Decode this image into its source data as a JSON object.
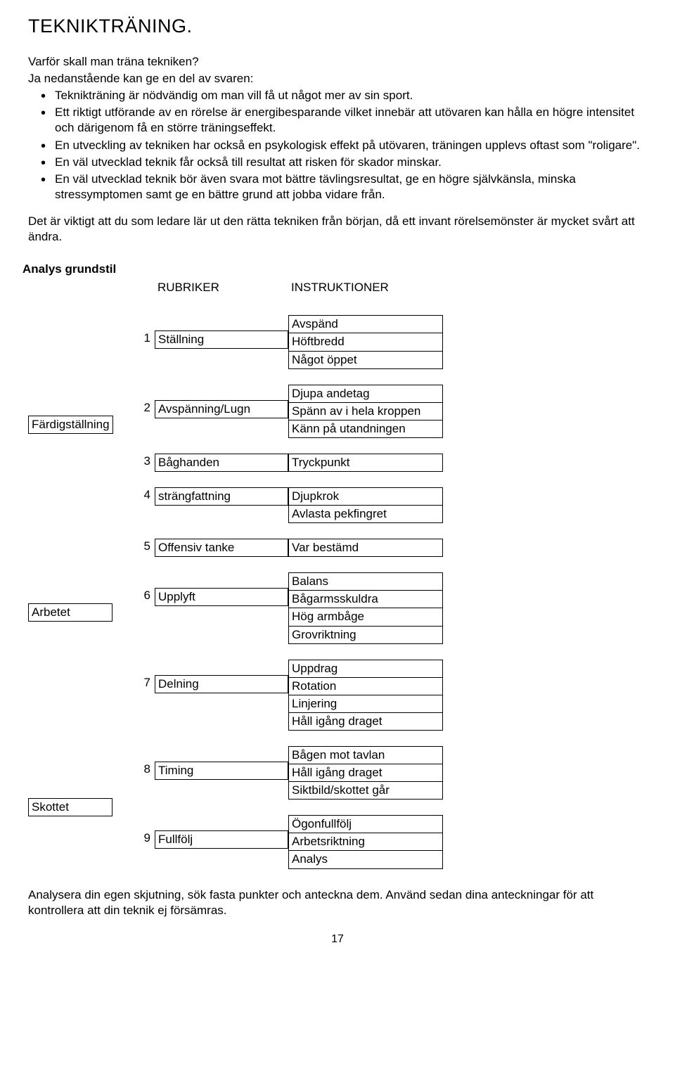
{
  "title": "TEKNIKTRÄNING.",
  "intro_q": "Varför skall man träna tekniken?",
  "intro_a": "Ja nedanstående kan ge en del av svaren:",
  "bullets": [
    "Teknikträning är nödvändig om man vill få ut något mer av sin sport.",
    "Ett riktigt utförande av en rörelse är energibesparande vilket innebär att utövaren kan hålla en högre intensitet och därigenom få en större träningseffekt.",
    "En utveckling av tekniken har också en psykologisk effekt på utövaren, träningen upplevs oftast som \"roligare\".",
    "En väl utvecklad teknik får också till resultat att risken för skador minskar.",
    "En väl utvecklad teknik bör även svara mot bättre tävlingsresultat, ge en högre självkänsla, minska stressymptomen samt ge en bättre grund att jobba vidare från."
  ],
  "para_after": "Det är viktigt att du som ledare lär ut den rätta tekniken från början, då ett invant rörelsemönster är mycket svårt att ändra.",
  "analys_header": "Analys grundstil",
  "col_headers": {
    "rubriker": "RUBRIKER",
    "instruktioner": "INSTRUKTIONER"
  },
  "sections": [
    {
      "phase": "",
      "rows": [
        {
          "num": "1",
          "rubrik": "Ställning",
          "align": 1,
          "instr": [
            "Avspänd",
            "Höftbredd",
            "Något öppet"
          ]
        }
      ]
    },
    {
      "phase": "Färdigställning",
      "phase_align_row": 0,
      "phase_align_bottom": true,
      "rows": [
        {
          "num": "2",
          "rubrik": "Avspänning/Lugn",
          "align": 1,
          "instr": [
            "Djupa andetag",
            "Spänn av i hela kroppen",
            "Känn på utandningen"
          ]
        }
      ]
    },
    {
      "phase": "",
      "rows": [
        {
          "num": "3",
          "rubrik": "Båghanden",
          "align": 0,
          "instr": [
            "Tryckpunkt"
          ]
        }
      ]
    },
    {
      "phase": "",
      "rows": [
        {
          "num": "4",
          "rubrik": "strängfattning",
          "align": 0,
          "instr": [
            "Djupkrok",
            "Avlasta pekfingret"
          ]
        }
      ]
    },
    {
      "phase": "",
      "rows": [
        {
          "num": "5",
          "rubrik": "Offensiv tanke",
          "align": 0,
          "instr": [
            "Var bestämd"
          ]
        }
      ]
    },
    {
      "phase": "Arbetet",
      "phase_align_row": 0,
      "phase_align_instr": 2,
      "rows": [
        {
          "num": "6",
          "rubrik": "Upplyft",
          "align": 1,
          "instr": [
            "Balans",
            "Bågarmsskuldra",
            "Hög armbåge",
            "Grovriktning"
          ]
        }
      ]
    },
    {
      "phase": "",
      "rows": [
        {
          "num": "7",
          "rubrik": "Delning",
          "align": 1,
          "instr": [
            "Uppdrag",
            "Rotation",
            "Linjering",
            "Håll igång draget"
          ]
        }
      ]
    },
    {
      "phase": "Skottet",
      "phase_between": true,
      "rows": [
        {
          "num": "8",
          "rubrik": "Timing",
          "align": 1,
          "instr": [
            "Bågen mot tavlan",
            "Håll igång draget",
            "Siktbild/skottet går"
          ]
        },
        {
          "num": "9",
          "rubrik": "Fullfölj",
          "align": 1,
          "instr": [
            "Ögonfullfölj",
            "Arbetsriktning",
            "Analys"
          ]
        }
      ]
    }
  ],
  "footer": "Analysera din egen skjutning, sök fasta punkter och anteckna dem. Använd sedan dina anteckningar för att kontrollera att din teknik ej försämras.",
  "page_number": "17",
  "colors": {
    "text": "#000000",
    "bg": "#ffffff",
    "border": "#000000"
  },
  "fontsize": {
    "title": 27,
    "body": 17
  }
}
